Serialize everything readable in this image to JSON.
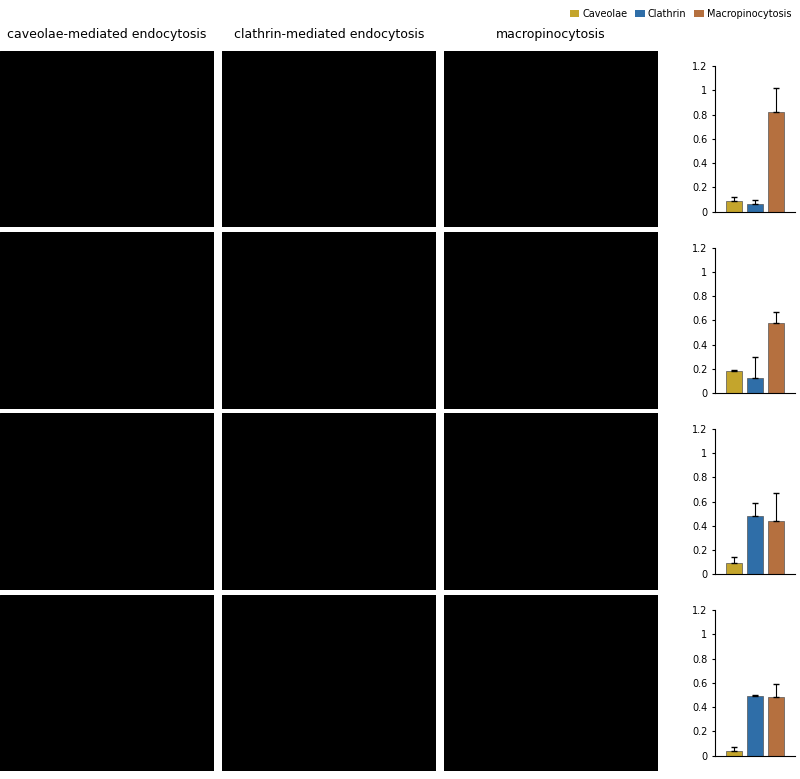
{
  "panels": {
    "columns": [
      "caveolae-mediated endocytosis",
      "clathrin-mediated endocytosis",
      "macropinocytosis"
    ]
  },
  "chart_data": [
    {
      "type": "bar",
      "categories": [
        null
      ],
      "tick_labels": "y",
      "legend": "upper right",
      "ylim": [
        0,
        1.2
      ],
      "yticks": [
        0,
        0.2,
        0.4,
        0.6,
        0.8,
        1,
        1.2
      ],
      "series": [
        {
          "name": "Caveolae",
          "color": "#c4a52c",
          "values": [
            0.09
          ],
          "error": [
            0.03
          ]
        },
        {
          "name": "Clathrin",
          "color": "#2f6ea8",
          "values": [
            0.06
          ],
          "error": [
            0.04
          ]
        },
        {
          "name": "Macropinocytosis",
          "color": "#b5703f",
          "values": [
            0.82
          ],
          "error": [
            0.2
          ]
        }
      ]
    },
    {
      "type": "bar",
      "categories": [
        null
      ],
      "tick_labels": "y",
      "ylim": [
        0,
        1.2
      ],
      "yticks": [
        0,
        0.2,
        0.4,
        0.6,
        0.8,
        1,
        1.2
      ],
      "series": [
        {
          "name": "Caveolae",
          "color": "#c4a52c",
          "values": [
            0.18
          ],
          "error": [
            0.01
          ]
        },
        {
          "name": "Clathrin",
          "color": "#2f6ea8",
          "values": [
            0.12
          ],
          "error": [
            0.18
          ]
        },
        {
          "name": "Macropinocytosis",
          "color": "#b5703f",
          "values": [
            0.58
          ],
          "error": [
            0.09
          ]
        }
      ]
    },
    {
      "type": "bar",
      "categories": [
        null
      ],
      "tick_labels": "y",
      "ylim": [
        0,
        1.2
      ],
      "yticks": [
        0,
        0.2,
        0.4,
        0.6,
        0.8,
        1,
        1.2
      ],
      "series": [
        {
          "name": "Caveolae",
          "color": "#c4a52c",
          "values": [
            0.09
          ],
          "error": [
            0.05
          ]
        },
        {
          "name": "Clathrin",
          "color": "#2f6ea8",
          "values": [
            0.48
          ],
          "error": [
            0.11
          ]
        },
        {
          "name": "Macropinocytosis",
          "color": "#b5703f",
          "values": [
            0.44
          ],
          "error": [
            0.23
          ]
        }
      ]
    },
    {
      "type": "bar",
      "categories": [
        null
      ],
      "tick_labels": "y",
      "ylim": [
        0,
        1.2
      ],
      "yticks": [
        0,
        0.2,
        0.4,
        0.6,
        0.8,
        1,
        1.2
      ],
      "series": [
        {
          "name": "Caveolae",
          "color": "#c4a52c",
          "values": [
            0.04
          ],
          "error": [
            0.03
          ]
        },
        {
          "name": "Clathrin",
          "color": "#2f6ea8",
          "values": [
            0.49
          ],
          "error": [
            0.01
          ]
        },
        {
          "name": "Macropinocytosis",
          "color": "#b5703f",
          "values": [
            0.48
          ],
          "error": [
            0.11
          ]
        }
      ]
    }
  ]
}
